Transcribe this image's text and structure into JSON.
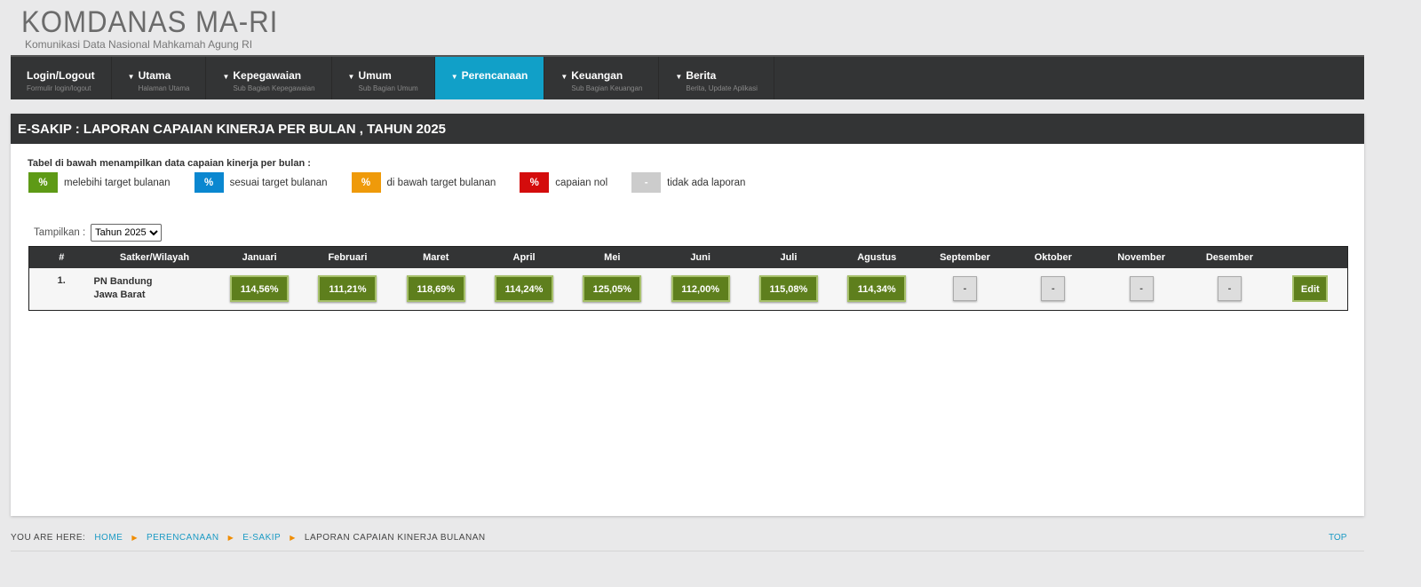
{
  "logo": {
    "title": "KOMDANAS MA-RI",
    "subtitle": "Komunikasi Data Nasional Mahkamah Agung RI"
  },
  "nav": [
    {
      "label": "Login/Logout",
      "desc": "Formulir login/logout",
      "caret": false
    },
    {
      "label": "Utama",
      "desc": "Halaman Utama",
      "caret": true
    },
    {
      "label": "Kepegawaian",
      "desc": "Sub Bagian Kepegawaian",
      "caret": true
    },
    {
      "label": "Umum",
      "desc": "Sub Bagian Umum",
      "caret": true
    },
    {
      "label": "Perencanaan",
      "desc": "",
      "caret": true,
      "active": true
    },
    {
      "label": "Keuangan",
      "desc": "Sub Bagian Keuangan",
      "caret": true
    },
    {
      "label": "Berita",
      "desc": "Berita, Update Aplikasi",
      "caret": true
    }
  ],
  "panel": {
    "title": "E-SAKIP : LAPORAN CAPAIAN KINERJA PER BULAN , TAHUN 2025",
    "intro": "Tabel di bawah menampilkan data capaian kinerja per bulan :",
    "legend": [
      {
        "symbol": "%",
        "label": "melebihi target bulanan",
        "color": "#5e9a16"
      },
      {
        "symbol": "%",
        "label": "sesuai target bulanan",
        "color": "#0a87d0"
      },
      {
        "symbol": "%",
        "label": "di bawah target bulanan",
        "color": "#ef9a0a"
      },
      {
        "symbol": "%",
        "label": "capaian nol",
        "color": "#d40c0c"
      },
      {
        "symbol": "-",
        "label": "tidak ada laporan",
        "color": "#cccccc"
      }
    ],
    "filter": {
      "label": "Tampilkan :",
      "selected": "Tahun 2025"
    }
  },
  "table": {
    "headers": [
      "#",
      "Satker/Wilayah",
      "Januari",
      "Februari",
      "Maret",
      "April",
      "Mei",
      "Juni",
      "Juli",
      "Agustus",
      "September",
      "Oktober",
      "November",
      "Desember",
      ""
    ],
    "rows": [
      {
        "no": "1.",
        "satker": "PN Bandung",
        "wilayah": "Jawa Barat",
        "values": [
          "114,56%",
          "111,21%",
          "118,69%",
          "114,24%",
          "125,05%",
          "112,00%",
          "115,08%",
          "114,34%",
          "-",
          "-",
          "-",
          "-"
        ],
        "action": "Edit"
      }
    ]
  },
  "breadcrumb": {
    "prefix": "YOU ARE HERE:",
    "items": [
      "HOME",
      "PERENCANAAN",
      "E-SAKIP"
    ],
    "current": "LAPORAN CAPAIAN KINERJA BULANAN",
    "top": "TOP"
  }
}
